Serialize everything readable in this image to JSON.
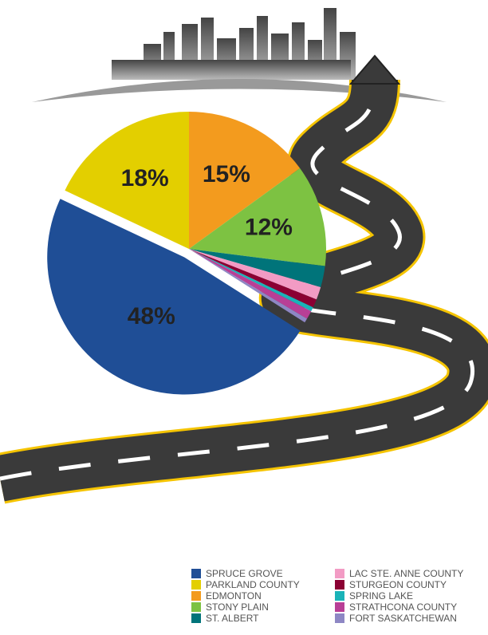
{
  "chart_data": {
    "type": "pie",
    "categories": [
      "SPRUCE GROVE",
      "PARKLAND COUNTY",
      "EDMONTON",
      "STONY PLAIN",
      "ST. ALBERT",
      "LAC STE. ANNE COUNTY",
      "STURGEON COUNTY",
      "SPRING LAKE",
      "STRATHCONA COUNTY",
      "FORT SASKATCHEWAN"
    ],
    "values": [
      48,
      18,
      15,
      12,
      2.5,
      1.5,
      1,
      0.5,
      1,
      0.5
    ],
    "value_labels": [
      "48%",
      "18%",
      "15%",
      "12%",
      null,
      null,
      null,
      null,
      null,
      null
    ],
    "colors": [
      "#1f4e96",
      "#e3cf00",
      "#f39b1e",
      "#7dc242",
      "#00747a",
      "#f29bc4",
      "#8b0033",
      "#1ab3b8",
      "#b83f96",
      "#8e87c4"
    ]
  }
}
